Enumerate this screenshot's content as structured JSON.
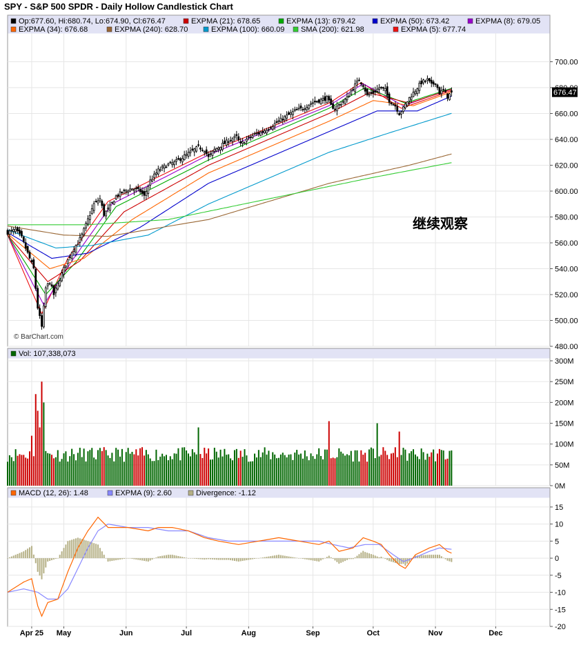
{
  "chart_data": {
    "type": "candlestick",
    "title": "SPY - S&P 500 SPDR - Daily Hollow Candlestick Chart",
    "watermark": "© BarChart.com",
    "annotation": "继续观察",
    "x_labels": [
      {
        "label": "Apr 25",
        "day": 12
      },
      {
        "label": "May",
        "day": 28
      },
      {
        "label": "Jun",
        "day": 59
      },
      {
        "label": "Jul",
        "day": 89
      },
      {
        "label": "Aug",
        "day": 120
      },
      {
        "label": "Sep",
        "day": 152
      },
      {
        "label": "Oct",
        "day": 182
      },
      {
        "label": "Nov",
        "day": 213
      },
      {
        "label": "Dec",
        "day": 243
      }
    ],
    "x_range": [
      0,
      270
    ],
    "price_panel": {
      "ylim": [
        480,
        720
      ],
      "ticks": [
        "480.00",
        "500.00",
        "520.00",
        "540.00",
        "560.00",
        "580.00",
        "600.00",
        "620.00",
        "640.00",
        "660.00",
        "680.00",
        "700.00"
      ],
      "last_price_label": "676.47",
      "last_price": 676.47,
      "legend": [
        {
          "marker": "#000000",
          "text": "Op:677.60, Hi:680.74, Lo:674.90, Cl:676.47"
        },
        {
          "marker": "#cc0000",
          "text": "EXPMA (21): 678.65"
        },
        {
          "marker": "#00aa00",
          "text": "EXPMA (13): 679.42"
        },
        {
          "marker": "#0000cc",
          "text": "EXPMA (50): 673.42"
        },
        {
          "marker": "#9900cc",
          "text": "EXPMA (8): 679.05"
        },
        {
          "marker": "#ff6600",
          "text": "EXPMA (34): 676.68"
        },
        {
          "marker": "#996633",
          "text": "EXPMA (240): 628.70"
        },
        {
          "marker": "#0099cc",
          "text": "EXPMA (100): 660.09"
        },
        {
          "marker": "#33cc33",
          "text": "SMA (200): 621.98"
        },
        {
          "marker": "#ee1111",
          "text": "EXPMA (5): 677.74"
        }
      ],
      "close_keypoints": [
        [
          0,
          568
        ],
        [
          4,
          570
        ],
        [
          7,
          564
        ],
        [
          10,
          552
        ],
        [
          13,
          540
        ],
        [
          15,
          510
        ],
        [
          17,
          495
        ],
        [
          19,
          525
        ],
        [
          21,
          530
        ],
        [
          23,
          520
        ],
        [
          25,
          528
        ],
        [
          28,
          540
        ],
        [
          31,
          550
        ],
        [
          33,
          556
        ],
        [
          35,
          560
        ],
        [
          37,
          566
        ],
        [
          40,
          578
        ],
        [
          43,
          590
        ],
        [
          46,
          594
        ],
        [
          48,
          582
        ],
        [
          51,
          588
        ],
        [
          54,
          596
        ],
        [
          58,
          600
        ],
        [
          62,
          602
        ],
        [
          66,
          600
        ],
        [
          68,
          596
        ],
        [
          71,
          608
        ],
        [
          75,
          616
        ],
        [
          79,
          620
        ],
        [
          83,
          622
        ],
        [
          87,
          626
        ],
        [
          91,
          630
        ],
        [
          95,
          634
        ],
        [
          98,
          632
        ],
        [
          100,
          626
        ],
        [
          103,
          632
        ],
        [
          107,
          636
        ],
        [
          111,
          640
        ],
        [
          114,
          642
        ],
        [
          116,
          636
        ],
        [
          119,
          640
        ],
        [
          123,
          644
        ],
        [
          127,
          646
        ],
        [
          131,
          650
        ],
        [
          135,
          654
        ],
        [
          139,
          658
        ],
        [
          143,
          662
        ],
        [
          147,
          664
        ],
        [
          151,
          668
        ],
        [
          155,
          670
        ],
        [
          159,
          672
        ],
        [
          161,
          666
        ],
        [
          163,
          664
        ],
        [
          166,
          668
        ],
        [
          169,
          672
        ],
        [
          172,
          680
        ],
        [
          175,
          686
        ],
        [
          177,
          682
        ],
        [
          179,
          674
        ],
        [
          182,
          676
        ],
        [
          185,
          680
        ],
        [
          188,
          678
        ],
        [
          190,
          670
        ],
        [
          193,
          666
        ],
        [
          195,
          660
        ],
        [
          197,
          664
        ],
        [
          200,
          672
        ],
        [
          203,
          678
        ],
        [
          206,
          684
        ],
        [
          209,
          686
        ],
        [
          211,
          682
        ],
        [
          213,
          684
        ],
        [
          215,
          676
        ],
        [
          217,
          678
        ],
        [
          219,
          673
        ],
        [
          221,
          676.47
        ]
      ],
      "indicator_levels": [
        {
          "name": "EXPMA (5)",
          "color": "#ee1111",
          "key": [
            [
              0,
              566
            ],
            [
              17,
              505
            ],
            [
              30,
              548
            ],
            [
              50,
              592
            ],
            [
              100,
              630
            ],
            [
              160,
              668
            ],
            [
              176,
              684
            ],
            [
              196,
              664
            ],
            [
              221,
              677.74
            ]
          ]
        },
        {
          "name": "EXPMA (8)",
          "color": "#9900cc",
          "key": [
            [
              0,
              566
            ],
            [
              18,
              512
            ],
            [
              32,
              546
            ],
            [
              52,
              590
            ],
            [
              100,
              628
            ],
            [
              160,
              666
            ],
            [
              177,
              683
            ],
            [
              197,
              666
            ],
            [
              221,
              679.05
            ]
          ]
        },
        {
          "name": "EXPMA (13)",
          "color": "#00aa00",
          "key": [
            [
              0,
              566
            ],
            [
              19,
              520
            ],
            [
              34,
              545
            ],
            [
              54,
              588
            ],
            [
              100,
              624
            ],
            [
              160,
              664
            ],
            [
              178,
              680
            ],
            [
              198,
              668
            ],
            [
              221,
              679.42
            ]
          ]
        },
        {
          "name": "EXPMA (21)",
          "color": "#cc0000",
          "key": [
            [
              0,
              566
            ],
            [
              20,
              530
            ],
            [
              36,
              546
            ],
            [
              58,
              584
            ],
            [
              100,
              620
            ],
            [
              160,
              660
            ],
            [
              180,
              676
            ],
            [
              200,
              668
            ],
            [
              221,
              678.65
            ]
          ]
        },
        {
          "name": "EXPMA (34)",
          "color": "#ff6600",
          "key": [
            [
              0,
              567
            ],
            [
              21,
              540
            ],
            [
              38,
              548
            ],
            [
              62,
              578
            ],
            [
              100,
              614
            ],
            [
              160,
              654
            ],
            [
              182,
              670
            ],
            [
              202,
              666
            ],
            [
              221,
              676.68
            ]
          ]
        },
        {
          "name": "EXPMA (50)",
          "color": "#0000cc",
          "key": [
            [
              0,
              568
            ],
            [
              22,
              548
            ],
            [
              40,
              552
            ],
            [
              66,
              572
            ],
            [
              100,
              606
            ],
            [
              160,
              646
            ],
            [
              184,
              662
            ],
            [
              204,
              662
            ],
            [
              221,
              673.42
            ]
          ]
        },
        {
          "name": "EXPMA (100)",
          "color": "#0099cc",
          "key": [
            [
              0,
              570
            ],
            [
              24,
              556
            ],
            [
              42,
              558
            ],
            [
              70,
              566
            ],
            [
              100,
              590
            ],
            [
              160,
              630
            ],
            [
              190,
              645
            ],
            [
              221,
              660.09
            ]
          ]
        },
        {
          "name": "EXPMA (240)",
          "color": "#996633",
          "key": [
            [
              0,
              573
            ],
            [
              28,
              566
            ],
            [
              50,
              565
            ],
            [
              100,
              578
            ],
            [
              160,
              606
            ],
            [
              200,
              620
            ],
            [
              221,
              628.7
            ]
          ]
        },
        {
          "name": "SMA (200)",
          "color": "#33cc33",
          "key": [
            [
              0,
              574
            ],
            [
              20,
              574
            ],
            [
              40,
              574
            ],
            [
              80,
              578
            ],
            [
              130,
              594
            ],
            [
              180,
              610
            ],
            [
              221,
              621.98
            ]
          ]
        }
      ]
    },
    "volume_panel": {
      "ylim": [
        0,
        300
      ],
      "ticks": [
        "0M",
        "50M",
        "100M",
        "150M",
        "200M",
        "250M",
        "300M"
      ],
      "legend_marker": "#006600",
      "legend": "Vol: 107,338,073",
      "spikes": [
        [
          12,
          120
        ],
        [
          14,
          220
        ],
        [
          15,
          180
        ],
        [
          16,
          140
        ],
        [
          17,
          250
        ],
        [
          18,
          200
        ],
        [
          95,
          140
        ],
        [
          160,
          155
        ],
        [
          184,
          150
        ],
        [
          195,
          130
        ]
      ],
      "base_level": 75
    },
    "macd_panel": {
      "ylim": [
        -20,
        17
      ],
      "ticks": [
        "-20",
        "-15",
        "-10",
        "-5",
        "0",
        "5",
        "10",
        "15"
      ],
      "legend": [
        {
          "marker": "#ff6600",
          "text": "MACD (12, 26): 1.48"
        },
        {
          "marker": "#8888ff",
          "text": "EXPMA (9): 2.60"
        },
        {
          "marker": "#b5b086",
          "text": "Divergence: -1.12"
        }
      ],
      "macd_key": [
        [
          0,
          -10
        ],
        [
          8,
          -7
        ],
        [
          12,
          -6
        ],
        [
          15,
          -14
        ],
        [
          17,
          -17
        ],
        [
          20,
          -13
        ],
        [
          25,
          -12
        ],
        [
          30,
          -4
        ],
        [
          35,
          3
        ],
        [
          40,
          8
        ],
        [
          45,
          12
        ],
        [
          50,
          9
        ],
        [
          60,
          9
        ],
        [
          70,
          8
        ],
        [
          75,
          9
        ],
        [
          82,
          9
        ],
        [
          90,
          8
        ],
        [
          98,
          6
        ],
        [
          105,
          5
        ],
        [
          115,
          4
        ],
        [
          125,
          5
        ],
        [
          135,
          6
        ],
        [
          145,
          5
        ],
        [
          155,
          4
        ],
        [
          160,
          5
        ],
        [
          165,
          2
        ],
        [
          172,
          3
        ],
        [
          177,
          6
        ],
        [
          182,
          5
        ],
        [
          186,
          4
        ],
        [
          190,
          1
        ],
        [
          195,
          -2
        ],
        [
          198,
          -3
        ],
        [
          203,
          1
        ],
        [
          210,
          3
        ],
        [
          215,
          4
        ],
        [
          219,
          2
        ],
        [
          221,
          1.48
        ]
      ],
      "signal_key": [
        [
          0,
          -10
        ],
        [
          8,
          -9
        ],
        [
          15,
          -10
        ],
        [
          20,
          -12
        ],
        [
          25,
          -12
        ],
        [
          30,
          -9
        ],
        [
          35,
          -3
        ],
        [
          40,
          3
        ],
        [
          45,
          8
        ],
        [
          50,
          10
        ],
        [
          60,
          9
        ],
        [
          70,
          9
        ],
        [
          80,
          8
        ],
        [
          90,
          8
        ],
        [
          100,
          6
        ],
        [
          110,
          5
        ],
        [
          125,
          5
        ],
        [
          135,
          5
        ],
        [
          145,
          5
        ],
        [
          155,
          5
        ],
        [
          162,
          4
        ],
        [
          170,
          3
        ],
        [
          178,
          4
        ],
        [
          185,
          4
        ],
        [
          192,
          1
        ],
        [
          197,
          -1
        ],
        [
          202,
          0
        ],
        [
          210,
          2
        ],
        [
          215,
          3
        ],
        [
          221,
          2.6
        ]
      ]
    }
  }
}
